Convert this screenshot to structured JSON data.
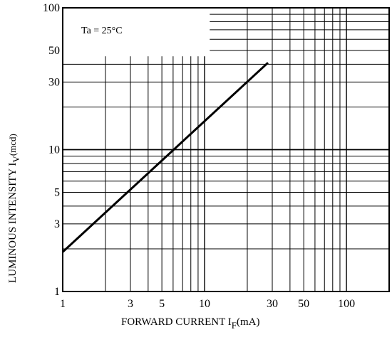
{
  "chart_data": {
    "type": "line",
    "x_scale": "log",
    "y_scale": "log",
    "xlim": [
      1,
      200
    ],
    "ylim": [
      1,
      100
    ],
    "x_ticks": [
      1,
      3,
      5,
      10,
      30,
      50,
      100
    ],
    "x_tick_labels": [
      "1",
      "3",
      "5",
      "10",
      "30",
      "50",
      "100"
    ],
    "y_ticks": [
      1,
      3,
      5,
      10,
      30,
      50,
      100
    ],
    "y_tick_labels": [
      "1",
      "3",
      "5",
      "10",
      "30",
      "50",
      "100"
    ],
    "grid": true,
    "xlabel": {
      "main": "FORWARD CURRENT  I",
      "sub": "F",
      "unit": "(mA)"
    },
    "ylabel": {
      "main": "LUMINOUS INTENSITY  I",
      "sub": "V",
      "unit": "(mcd)"
    },
    "annotation": "Ta = 25°C",
    "series": [
      {
        "x": [
          1,
          28
        ],
        "y": [
          1.9,
          41
        ],
        "color": "#000000"
      }
    ]
  }
}
